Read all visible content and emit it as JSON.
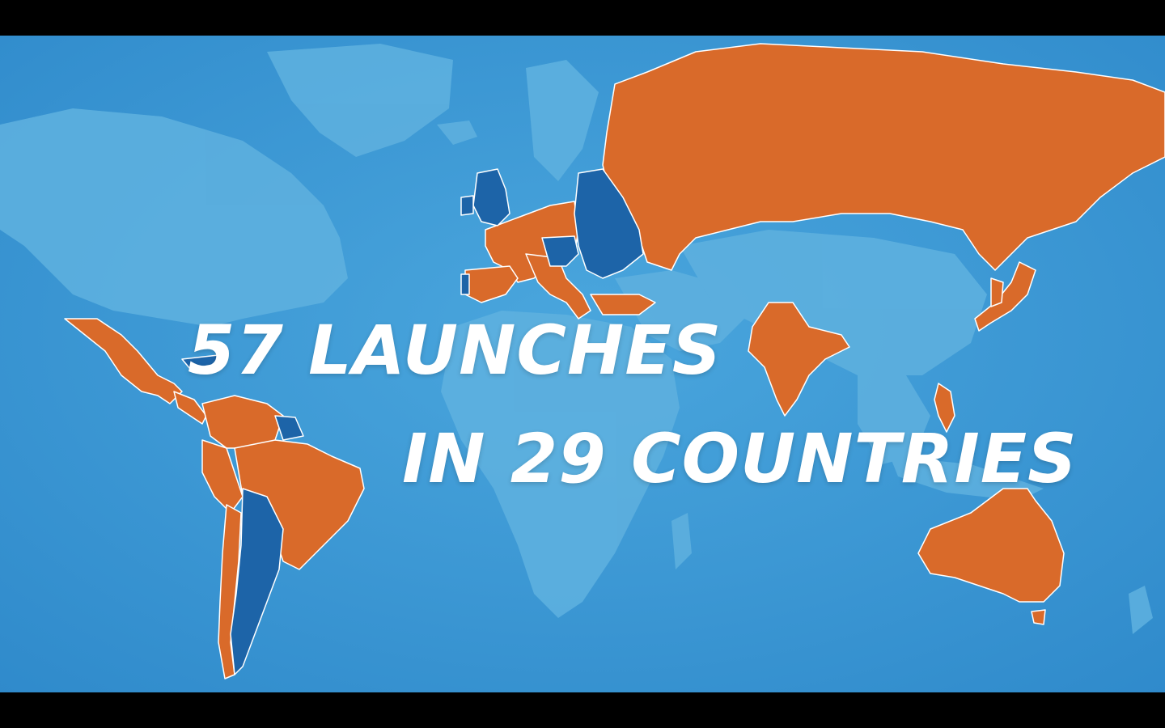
{
  "headline": {
    "line1": "57 LAUNCHES",
    "line2": "IN 29 COUNTRIES"
  },
  "colors": {
    "ocean": "#3f9ad6",
    "ocean_light": "#52aee0",
    "land_inactive": "#5fb1df",
    "launch_country": "#d96a2a",
    "other_market": "#1d64a8",
    "border": "#ffffff",
    "text": "#ffffff"
  }
}
